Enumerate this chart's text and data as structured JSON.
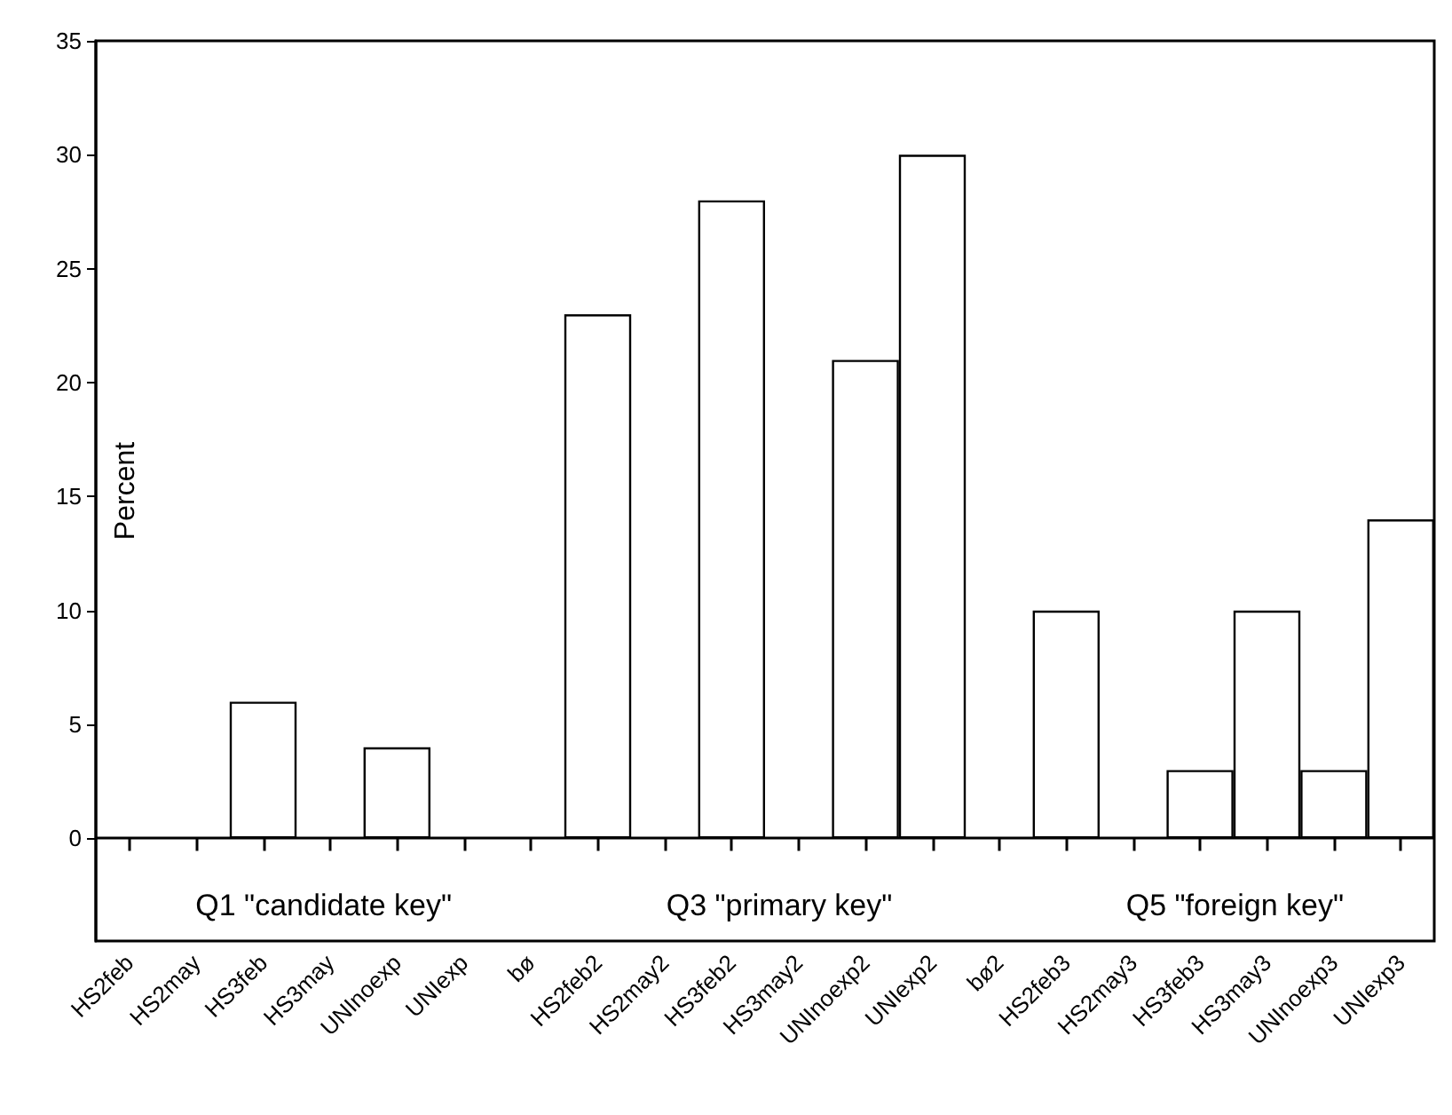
{
  "chart_data": {
    "type": "bar",
    "ylabel": "Percent",
    "categories": [
      "HS2feb",
      "HS2may",
      "HS3feb",
      "HS3may",
      "UNInoexp",
      "UNIexp",
      "bø",
      "HS2feb2",
      "HS2may2",
      "HS3feb2",
      "HS3may2",
      "UNInoexp2",
      "UNIexp2",
      "bø2",
      "HS2feb3",
      "HS2may3",
      "HS3feb3",
      "HS3may3",
      "UNInoexp3",
      "UNIexp3"
    ],
    "values": [
      null,
      null,
      6,
      null,
      4,
      null,
      null,
      23,
      null,
      28,
      null,
      21,
      30,
      null,
      10,
      null,
      3,
      10,
      3,
      14
    ],
    "color": "#ffffff",
    "ylim": [
      -4.5,
      35
    ],
    "yticks": [
      0,
      5,
      10,
      15,
      20,
      25,
      30,
      35
    ],
    "ref_lines": [
      {
        "axis": "y",
        "value": 0,
        "color": "#000000"
      }
    ],
    "annotations": [
      "Q1 \"candidate key\"",
      "Q3 \"primary key\"",
      "Q5 \"foreign key\""
    ],
    "grid": false
  }
}
